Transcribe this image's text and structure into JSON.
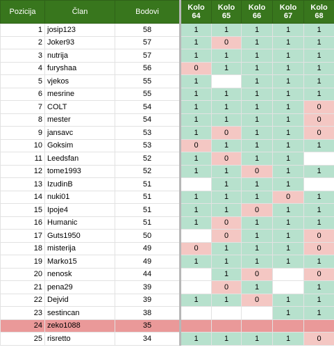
{
  "headers": {
    "pozicija": "Pozicija",
    "clan": "Član",
    "bodovi": "Bodovi",
    "kolo": [
      "Kolo\n64",
      "Kolo\n65",
      "Kolo\n66",
      "Kolo\n67",
      "Kolo\n68"
    ]
  },
  "colors": {
    "header": "#38761d",
    "win": "#b7e1cd",
    "loss": "#f4c7c3",
    "highlight": "#ea9999"
  },
  "highlight_row": 24,
  "rows": [
    {
      "pos": "1",
      "name": "josip123",
      "pts": "58",
      "k": [
        "1",
        "1",
        "1",
        "1",
        "1"
      ]
    },
    {
      "pos": "2",
      "name": "Joker93",
      "pts": "57",
      "k": [
        "1",
        "0",
        "1",
        "1",
        "1"
      ]
    },
    {
      "pos": "3",
      "name": "nutrija",
      "pts": "57",
      "k": [
        "1",
        "1",
        "1",
        "1",
        "1"
      ]
    },
    {
      "pos": "4",
      "name": "furyshaa",
      "pts": "56",
      "k": [
        "0",
        "1",
        "1",
        "1",
        "1"
      ]
    },
    {
      "pos": "5",
      "name": "vjekos",
      "pts": "55",
      "k": [
        "1",
        "",
        "1",
        "1",
        "1"
      ]
    },
    {
      "pos": "6",
      "name": "mesrine",
      "pts": "55",
      "k": [
        "1",
        "1",
        "1",
        "1",
        "1"
      ]
    },
    {
      "pos": "7",
      "name": "COLT",
      "pts": "54",
      "k": [
        "1",
        "1",
        "1",
        "1",
        "0"
      ]
    },
    {
      "pos": "8",
      "name": "mester",
      "pts": "54",
      "k": [
        "1",
        "1",
        "1",
        "1",
        "0"
      ]
    },
    {
      "pos": "9",
      "name": "jansavc",
      "pts": "53",
      "k": [
        "1",
        "0",
        "1",
        "1",
        "0"
      ]
    },
    {
      "pos": "10",
      "name": "Goksim",
      "pts": "53",
      "k": [
        "0",
        "1",
        "1",
        "1",
        "1"
      ]
    },
    {
      "pos": "11",
      "name": "Leedsfan",
      "pts": "52",
      "k": [
        "1",
        "0",
        "1",
        "1",
        ""
      ]
    },
    {
      "pos": "12",
      "name": "tome1993",
      "pts": "52",
      "k": [
        "1",
        "1",
        "0",
        "1",
        "1"
      ]
    },
    {
      "pos": "13",
      "name": "IzudinB",
      "pts": "51",
      "k": [
        "",
        "1",
        "1",
        "1",
        ""
      ]
    },
    {
      "pos": "14",
      "name": "nuki01",
      "pts": "51",
      "k": [
        "1",
        "1",
        "1",
        "0",
        "1"
      ]
    },
    {
      "pos": "15",
      "name": "Ipoje4",
      "pts": "51",
      "k": [
        "1",
        "1",
        "0",
        "1",
        "1"
      ]
    },
    {
      "pos": "16",
      "name": "Humanic",
      "pts": "51",
      "k": [
        "1",
        "0",
        "1",
        "1",
        "1"
      ]
    },
    {
      "pos": "17",
      "name": "Guts1950",
      "pts": "50",
      "k": [
        "",
        "0",
        "1",
        "1",
        "0"
      ]
    },
    {
      "pos": "18",
      "name": "misterija",
      "pts": "49",
      "k": [
        "0",
        "1",
        "1",
        "1",
        "0"
      ]
    },
    {
      "pos": "19",
      "name": "Marko15",
      "pts": "49",
      "k": [
        "1",
        "1",
        "1",
        "1",
        "1"
      ]
    },
    {
      "pos": "20",
      "name": "nenosk",
      "pts": "44",
      "k": [
        "",
        "1",
        "0",
        "",
        "0"
      ]
    },
    {
      "pos": "21",
      "name": "pena29",
      "pts": "39",
      "k": [
        "",
        "0",
        "1",
        "",
        "1"
      ]
    },
    {
      "pos": "22",
      "name": "Dejvid",
      "pts": "39",
      "k": [
        "1",
        "1",
        "0",
        "1",
        "1"
      ]
    },
    {
      "pos": "23",
      "name": "sestincan",
      "pts": "38",
      "k": [
        "",
        "",
        "",
        "1",
        "1"
      ]
    },
    {
      "pos": "24",
      "name": "zeko1088",
      "pts": "35",
      "k": [
        "",
        "",
        "",
        "",
        ""
      ]
    },
    {
      "pos": "25",
      "name": "risretto",
      "pts": "34",
      "k": [
        "1",
        "1",
        "1",
        "1",
        "0"
      ]
    }
  ]
}
